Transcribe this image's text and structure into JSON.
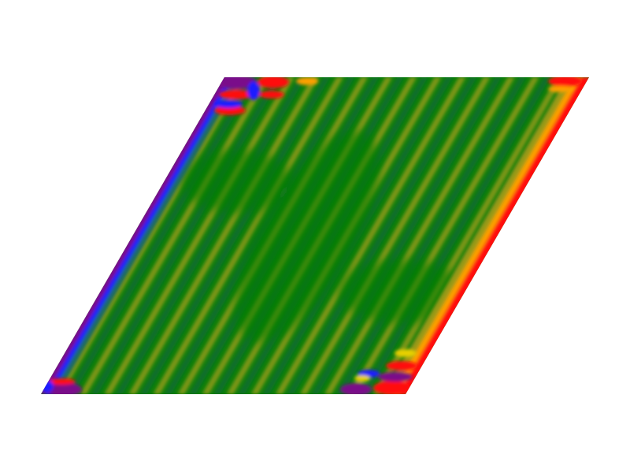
{
  "image": {
    "background": "#ffffff",
    "shape": "parallelogram",
    "field": {
      "stripe_count": 15,
      "stripe_direction": "diagonal",
      "base_color": "#0a7d0a",
      "stripe_light_color": "#8f9a1a",
      "stripe_dark_color": "#0b6a3a"
    },
    "palette": {
      "green": "#0a7d0a",
      "olive": "#9a9a12",
      "teal": "#1a6a6a",
      "blue": "#1a1aff",
      "purple": "#7a0a8a",
      "red": "#ff0a0a",
      "orange": "#ffa000",
      "yellow": "#e8d000"
    },
    "edge_bands": {
      "left_edge": [
        "#7a0a8a",
        "#1a1aff",
        "#1a6a6a"
      ],
      "right_edge": [
        "#ff0a0a",
        "#ffa000",
        "#9a9a12"
      ]
    },
    "corner_blobs": [
      {
        "name": "top-left-corner-blobs",
        "colors": [
          "#7a0a8a",
          "#ff0a0a",
          "#1a1aff"
        ]
      },
      {
        "name": "top-right-corner-blob",
        "colors": [
          "#ff0a0a",
          "#ffa000"
        ]
      },
      {
        "name": "bottom-left-corner-blobs",
        "colors": [
          "#7a0a8a",
          "#ff0a0a",
          "#1a1aff"
        ]
      },
      {
        "name": "bottom-right-corner-blobs",
        "colors": [
          "#ff0a0a",
          "#7a0a8a",
          "#1a1aff",
          "#e8d000"
        ]
      }
    ]
  }
}
